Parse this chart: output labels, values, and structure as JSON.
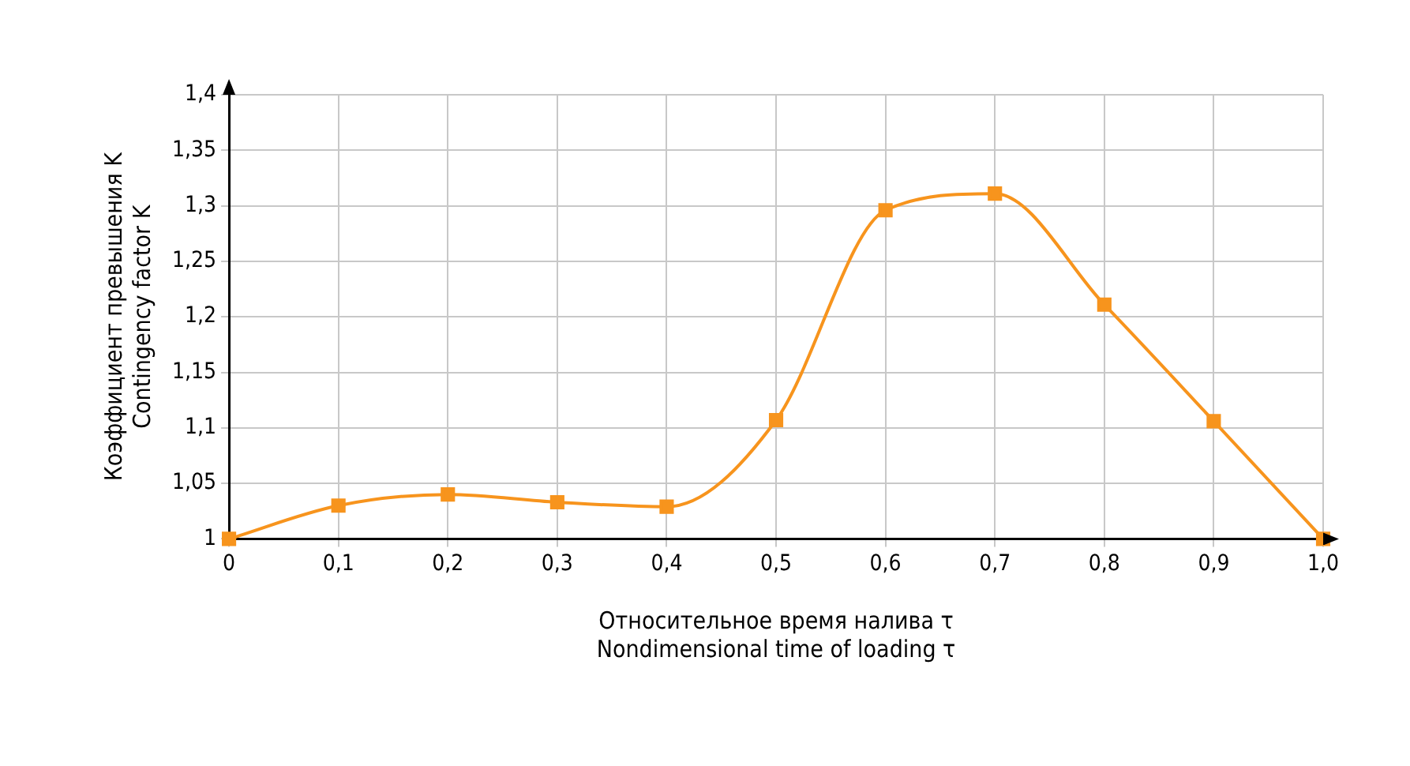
{
  "chart_data": {
    "type": "line",
    "xlabel": [
      "Относительное время налива τ",
      "Nondimensional time of loading τ"
    ],
    "ylabel": [
      "Коэффициент превышения K",
      "Contingency factor K"
    ],
    "x": [
      0,
      0.1,
      0.2,
      0.3,
      0.4,
      0.5,
      0.6,
      0.7,
      0.8,
      0.9,
      1.0
    ],
    "series": [
      {
        "color": "#f7941d",
        "values": [
          1.0,
          1.03,
          1.04,
          1.033,
          1.029,
          1.107,
          1.296,
          1.311,
          1.211,
          1.106,
          1.0
        ]
      }
    ],
    "xlim": [
      0,
      1
    ],
    "xticks": [
      0,
      {
        "value": 0.1,
        "label": "0,1"
      },
      {
        "value": 0.2,
        "label": "0,2"
      },
      {
        "value": 0.3,
        "label": "0,3"
      },
      {
        "value": 0.4,
        "label": "0,4"
      },
      {
        "value": 0.5,
        "label": "0,5"
      },
      {
        "value": 0.6,
        "label": "0,6"
      },
      {
        "value": 0.7,
        "label": "0,7"
      },
      {
        "value": 0.8,
        "label": "0,8"
      },
      {
        "value": 0.9,
        "label": "0,9"
      },
      {
        "value": 1,
        "label": "1,0"
      }
    ],
    "ylim": [
      1,
      1.4
    ],
    "yticks": [
      1,
      {
        "value": 1.05,
        "label": "1,05"
      },
      {
        "value": 1.1,
        "label": "1,1"
      },
      {
        "value": 1.15,
        "label": "1,15"
      },
      {
        "value": 1.2,
        "label": "1,2"
      },
      {
        "value": 1.25,
        "label": "1,25"
      },
      {
        "value": 1.3,
        "label": "1,3"
      },
      {
        "value": 1.35,
        "label": "1,35"
      },
      {
        "value": 1.4,
        "label": "1,4"
      }
    ],
    "grid": true,
    "legend": false,
    "marker": "square",
    "line_style": "solid"
  }
}
